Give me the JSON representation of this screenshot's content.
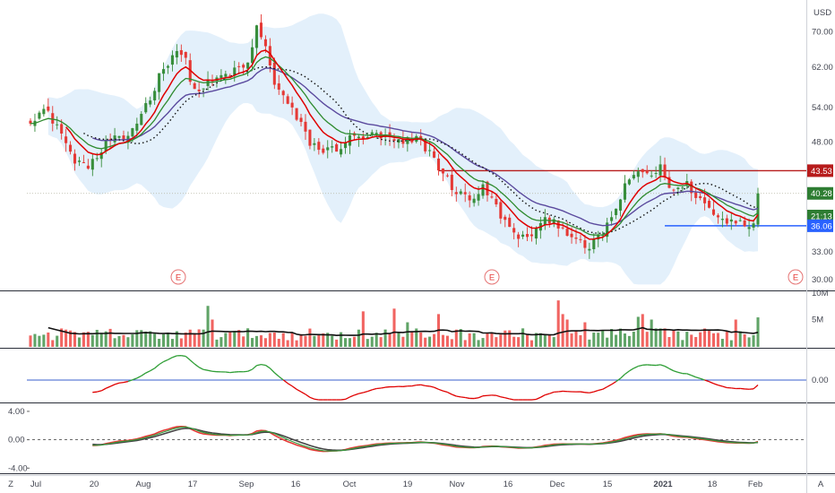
{
  "chart_data": {
    "type": "candlestick",
    "currency": "USD",
    "price_axis": {
      "ticks": [
        "70.00",
        "62.00",
        "54.00",
        "48.00",
        "43.53",
        "40.28",
        "36.06",
        "33.00",
        "30.00"
      ],
      "scale": "log",
      "ylim": [
        29.0,
        78.0
      ]
    },
    "x_ticks": [
      "Jul",
      "20",
      "Aug",
      "17",
      "Sep",
      "16",
      "Oct",
      "19",
      "Nov",
      "16",
      "Dec",
      "15",
      "2021",
      "18",
      "Feb"
    ],
    "last_price": "40.28",
    "countdown": "21:13",
    "horizontal_lines": [
      {
        "level": "43.53",
        "color": "#b71c1c"
      },
      {
        "level": "36.06",
        "color": "#2962ff"
      }
    ],
    "earnings_marker": "E",
    "close_path": [
      [
        0,
        52.0
      ],
      [
        3,
        53.5
      ],
      [
        6,
        51.0
      ],
      [
        9,
        46.0
      ],
      [
        12,
        44.0
      ],
      [
        15,
        45.5
      ],
      [
        18,
        48.5
      ],
      [
        21,
        48.0
      ],
      [
        24,
        51.5
      ],
      [
        27,
        56.0
      ],
      [
        30,
        62.0
      ],
      [
        33,
        66.0
      ],
      [
        35,
        63.0
      ],
      [
        37,
        57.0
      ],
      [
        40,
        58.5
      ],
      [
        43,
        60.0
      ],
      [
        46,
        61.0
      ],
      [
        49,
        62.5
      ],
      [
        51,
        71.0
      ],
      [
        53,
        66.0
      ],
      [
        55,
        59.0
      ],
      [
        57,
        56.0
      ],
      [
        60,
        52.0
      ],
      [
        63,
        48.0
      ],
      [
        66,
        46.5
      ],
      [
        69,
        47.0
      ],
      [
        72,
        48.5
      ],
      [
        75,
        49.0
      ],
      [
        78,
        49.0
      ],
      [
        81,
        48.5
      ],
      [
        84,
        47.5
      ],
      [
        87,
        48.5
      ],
      [
        90,
        46.5
      ],
      [
        93,
        43.0
      ],
      [
        96,
        40.5
      ],
      [
        99,
        39.5
      ],
      [
        102,
        41.0
      ],
      [
        105,
        38.5
      ],
      [
        108,
        35.5
      ],
      [
        111,
        34.5
      ],
      [
        114,
        35.5
      ],
      [
        117,
        37.0
      ],
      [
        120,
        36.0
      ],
      [
        123,
        34.0
      ],
      [
        126,
        33.5
      ],
      [
        128,
        34.5
      ],
      [
        131,
        37.0
      ],
      [
        134,
        41.0
      ],
      [
        137,
        43.5
      ],
      [
        140,
        43.0
      ],
      [
        142,
        43.8
      ],
      [
        145,
        40.5
      ],
      [
        148,
        41.5
      ],
      [
        151,
        39.5
      ],
      [
        154,
        37.5
      ],
      [
        157,
        36.5
      ],
      [
        160,
        37.0
      ],
      [
        162,
        35.8
      ],
      [
        163,
        37.0
      ],
      [
        164,
        40.28
      ]
    ],
    "volume_axis": {
      "ticks": [
        "10M",
        "5M"
      ],
      "ylim": [
        0,
        10
      ]
    },
    "indicator_1": {
      "ticks": [
        "0.00"
      ],
      "baseline": 0
    },
    "indicator_2": {
      "ticks": [
        "4.00",
        "0.00",
        "-4.00"
      ],
      "ylim": [
        -4.6,
        5.0
      ]
    },
    "colors": {
      "up": "#388e3c",
      "down": "#e53935",
      "ma_red": "#e00000",
      "ma_green": "#2e8b2e",
      "ma_purple": "#5b4a9e",
      "band": "#e3f0fb",
      "volume_ma": "#111111"
    }
  },
  "footer": {
    "left_label": "Z",
    "right_label": "A"
  }
}
